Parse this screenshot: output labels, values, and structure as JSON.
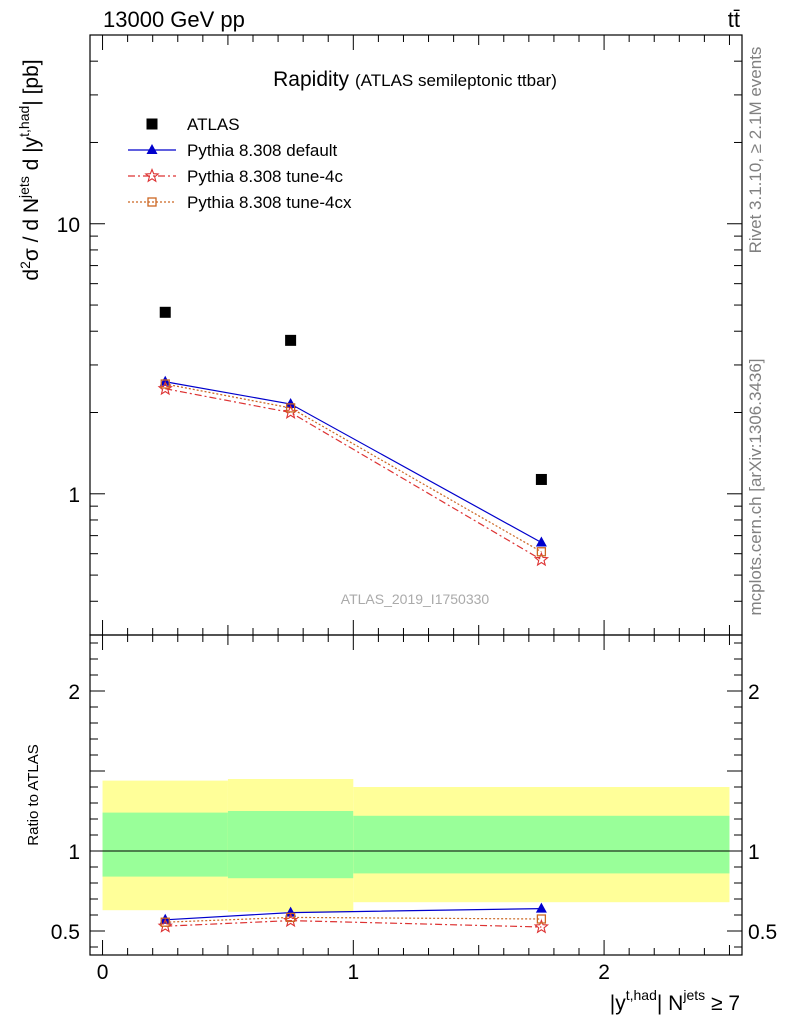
{
  "header": {
    "energy_label": "13000 GeV pp",
    "process_label": "tt̄"
  },
  "side_labels": {
    "rivet": "Rivet 3.1.10, ≥ 2.1M events",
    "mcplots": "mcplots.cern.ch [arXiv:1306.3436]"
  },
  "watermark": "ATLAS_2019_I1750330",
  "colors": {
    "atlas": "#000000",
    "default": "#0000cc",
    "tune4c": "#dd3333",
    "tune4cx": "#cc6622",
    "band_inner": "#99ff99",
    "band_outer": "#ffff99"
  },
  "chart_data": [
    {
      "type": "scatter",
      "panel": "main",
      "title": "Rapidity",
      "subtitle": "(ATLAS semileptonic ttbar)",
      "ylabel": "d²σ / d N^jets d |y^t,had| [pb]",
      "yscale": "log",
      "ylim": [
        0.3,
        50
      ],
      "xlim": [
        -0.05,
        2.55
      ],
      "yticks": [
        1,
        10
      ],
      "ytick_labels": [
        "1",
        "10"
      ],
      "legend_position": "top-left",
      "x": [
        0.25,
        0.75,
        1.75
      ],
      "series": [
        {
          "name": "ATLAS",
          "values": [
            4.7,
            3.7,
            1.13
          ],
          "marker": "square",
          "color": "#000000"
        },
        {
          "name": "Pythia 8.308 default",
          "values": [
            2.6,
            2.15,
            0.66
          ],
          "marker": "triangle",
          "color": "#0000cc",
          "line": "solid"
        },
        {
          "name": "Pythia 8.308 tune-4c",
          "values": [
            2.45,
            2.0,
            0.57
          ],
          "marker": "star",
          "color": "#dd3333",
          "line": "dashdot"
        },
        {
          "name": "Pythia 8.308 tune-4cx",
          "values": [
            2.55,
            2.08,
            0.61
          ],
          "marker": "open-square",
          "color": "#cc6622",
          "line": "dotted"
        }
      ]
    },
    {
      "type": "line",
      "panel": "ratio",
      "ylabel": "Ratio to ATLAS",
      "xlabel_main": "|y",
      "xlabel_sup1": "t,had",
      "xlabel_mid": "| N",
      "xlabel_sup2": "jets",
      "xlabel_end": " ≥ 7",
      "ylim": [
        0.35,
        2.35
      ],
      "xlim": [
        -0.05,
        2.55
      ],
      "xticks": [
        0,
        1,
        2
      ],
      "xtick_labels": [
        "0",
        "1",
        "2"
      ],
      "yticks": [
        0.5,
        1,
        2
      ],
      "ytick_labels": [
        "0.5",
        "1",
        "2"
      ],
      "bins": [
        [
          0,
          0.5
        ],
        [
          0.5,
          1.0
        ],
        [
          1.0,
          2.5
        ]
      ],
      "band_inner": [
        [
          0.84,
          1.24
        ],
        [
          0.83,
          1.25
        ],
        [
          0.86,
          1.22
        ]
      ],
      "band_outer": [
        [
          0.63,
          1.44
        ],
        [
          0.62,
          1.45
        ],
        [
          0.68,
          1.4
        ]
      ],
      "x": [
        0.25,
        0.75,
        1.75
      ],
      "series": [
        {
          "name": "Pythia 8.308 default",
          "values": [
            0.57,
            0.615,
            0.64
          ],
          "marker": "triangle",
          "color": "#0000cc",
          "line": "solid"
        },
        {
          "name": "Pythia 8.308 tune-4c",
          "values": [
            0.53,
            0.565,
            0.525
          ],
          "marker": "star",
          "color": "#dd3333",
          "line": "dashdot"
        },
        {
          "name": "Pythia 8.308 tune-4cx",
          "values": [
            0.555,
            0.585,
            0.575
          ],
          "marker": "open-square",
          "color": "#cc6622",
          "line": "dotted"
        }
      ]
    }
  ]
}
